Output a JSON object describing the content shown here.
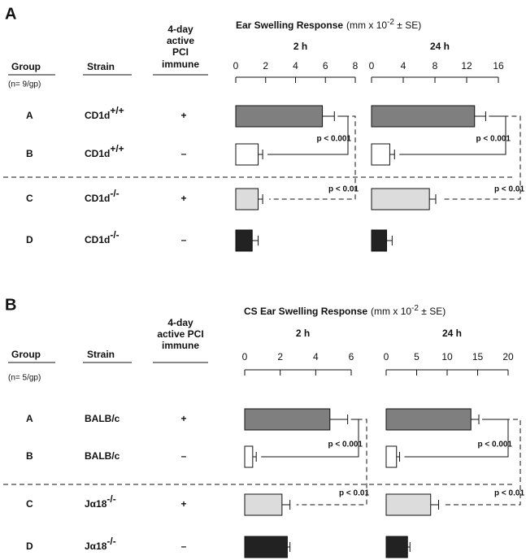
{
  "panels": [
    {
      "label": "A",
      "header": {
        "group": "Group",
        "n": "(n= 9/gp)",
        "strain": "Strain",
        "immune": [
          "4-day",
          "active",
          "PCI",
          "immune"
        ],
        "response_title": "Ear Swelling Response",
        "units_pre": "(mm x 10",
        "units_exp": "-2",
        "units_post": " ± SE)"
      },
      "rows": [
        {
          "group": "A",
          "strain": "CD1d",
          "strain_sup": "+/+",
          "immune": "+"
        },
        {
          "group": "B",
          "strain": "CD1d",
          "strain_sup": "+/+",
          "immune": "–"
        },
        {
          "group": "C",
          "strain": "CD1d",
          "strain_sup": "-/-",
          "immune": "+"
        },
        {
          "group": "D",
          "strain": "CD1d",
          "strain_sup": "-/-",
          "immune": "–"
        }
      ]
    },
    {
      "label": "B",
      "header": {
        "group": "Group",
        "n": "(n= 5/gp)",
        "strain": "Strain",
        "immune": [
          "4-day",
          "active PCI",
          "immune"
        ],
        "response_title": "CS Ear Swelling Response",
        "units_pre": "(mm x 10",
        "units_exp": "-2",
        "units_post": " ± SE)"
      },
      "rows": [
        {
          "group": "A",
          "strain": "BALB/c",
          "immune": "+"
        },
        {
          "group": "B",
          "strain": "BALB/c",
          "immune": "–"
        },
        {
          "group": "C",
          "strain": "Jα18",
          "strain_sup": "-/-",
          "immune": "+"
        },
        {
          "group": "D",
          "strain": "Jα18",
          "strain_sup": "-/-",
          "immune": "–"
        }
      ]
    }
  ],
  "chart_data": [
    {
      "type": "hbar",
      "title": "2 h",
      "xlim": [
        0,
        8
      ],
      "xticks": [
        0,
        2,
        4,
        6,
        8
      ],
      "values": [
        5.8,
        1.5,
        1.5,
        1.1
      ],
      "errors": [
        0.8,
        0.3,
        0.3,
        0.4
      ],
      "colors": [
        "#7f7f7f",
        "#ffffff",
        "#dcdcdc",
        "#222222"
      ],
      "annotations": [
        "p < 0.001",
        "p < 0.01"
      ]
    },
    {
      "type": "hbar",
      "title": "24 h",
      "xlim": [
        0,
        16
      ],
      "xticks": [
        0,
        4,
        8,
        12,
        16
      ],
      "values": [
        13.0,
        2.3,
        7.3,
        1.9
      ],
      "errors": [
        1.4,
        0.6,
        0.8,
        0.7
      ],
      "colors": [
        "#7f7f7f",
        "#ffffff",
        "#dcdcdc",
        "#222222"
      ],
      "annotations": [
        "p < 0.001",
        "p < 0.01"
      ]
    },
    {
      "type": "hbar",
      "title": "2 h",
      "xlim": [
        0,
        6
      ],
      "xticks": [
        0,
        2,
        4,
        6
      ],
      "values": [
        4.8,
        0.45,
        2.1,
        2.4
      ],
      "errors": [
        1.0,
        0.2,
        0.45,
        0.15
      ],
      "colors": [
        "#7f7f7f",
        "#ffffff",
        "#dcdcdc",
        "#222222"
      ],
      "annotations": [
        "p < 0.001",
        "p < 0.01"
      ]
    },
    {
      "type": "hbar",
      "title": "24 h",
      "xlim": [
        0,
        20
      ],
      "xticks": [
        0,
        5,
        10,
        15,
        20
      ],
      "values": [
        13.9,
        1.7,
        7.3,
        3.5
      ],
      "errors": [
        1.3,
        0.5,
        1.3,
        0.4
      ],
      "colors": [
        "#7f7f7f",
        "#ffffff",
        "#dcdcdc",
        "#222222"
      ],
      "annotations": [
        "p < 0.001",
        "p < 0.01"
      ]
    }
  ]
}
